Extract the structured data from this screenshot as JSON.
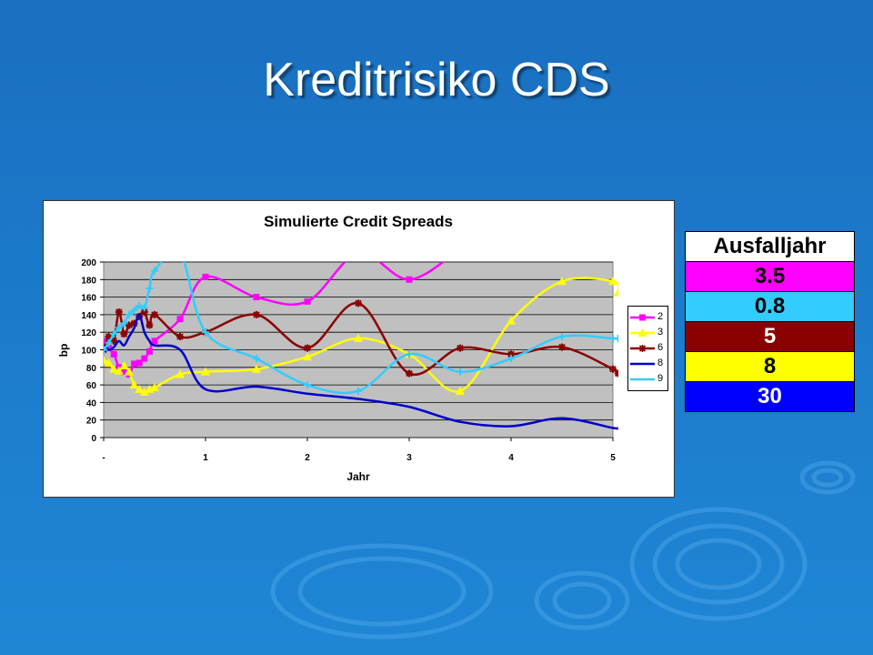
{
  "slide": {
    "title": "Kreditrisiko CDS"
  },
  "chart_data": {
    "type": "line",
    "title": "Simulierte Credit Spreads",
    "xlabel": "Jahr",
    "ylabel": "bp",
    "xlim": [
      0,
      5
    ],
    "ylim": [
      0,
      200
    ],
    "y_ticks": [
      0,
      20,
      40,
      60,
      80,
      100,
      120,
      140,
      160,
      180,
      200
    ],
    "x_ticks": [
      {
        "v": 0,
        "label": "-"
      },
      {
        "v": 1,
        "label": "1"
      },
      {
        "v": 2,
        "label": "2"
      },
      {
        "v": 3,
        "label": "3"
      },
      {
        "v": 4,
        "label": "4"
      },
      {
        "v": 5,
        "label": "5"
      }
    ],
    "grid": true,
    "legend_position": "right",
    "series": [
      {
        "name": "2",
        "color": "#ff00ff",
        "marker": "square",
        "x": [
          0,
          0.05,
          0.1,
          0.15,
          0.2,
          0.25,
          0.3,
          0.35,
          0.4,
          0.45,
          0.5,
          0.75,
          1.0,
          1.5,
          2.0,
          2.5,
          3.0,
          3.5
        ],
        "y": [
          110,
          102,
          95,
          80,
          75,
          72,
          84,
          85,
          90,
          98,
          110,
          135,
          183,
          160,
          155,
          210,
          180,
          215
        ]
      },
      {
        "name": "3",
        "color": "#ffff00",
        "marker": "triangle",
        "x": [
          0,
          0.05,
          0.1,
          0.15,
          0.2,
          0.25,
          0.3,
          0.35,
          0.4,
          0.45,
          0.5,
          0.75,
          1.0,
          1.5,
          2.0,
          2.5,
          3.0,
          3.5,
          4.0,
          4.5,
          5.0,
          5.05
        ],
        "y": [
          88,
          85,
          78,
          76,
          82,
          75,
          60,
          55,
          52,
          55,
          57,
          72,
          75,
          78,
          92,
          113,
          95,
          53,
          133,
          178,
          178,
          165
        ]
      },
      {
        "name": "6",
        "color": "#8b0000",
        "marker": "asterisk",
        "x": [
          0,
          0.05,
          0.1,
          0.15,
          0.2,
          0.25,
          0.3,
          0.35,
          0.4,
          0.45,
          0.5,
          0.75,
          1.0,
          1.5,
          2.0,
          2.5,
          3.0,
          3.5,
          4.0,
          4.5,
          5.0,
          5.05
        ],
        "y": [
          100,
          115,
          110,
          143,
          118,
          128,
          130,
          138,
          143,
          128,
          140,
          115,
          120,
          140,
          102,
          153,
          73,
          102,
          95,
          103,
          78,
          73
        ]
      },
      {
        "name": "8",
        "color": "#0000cc",
        "marker": "none",
        "x": [
          0,
          0.05,
          0.1,
          0.15,
          0.2,
          0.25,
          0.3,
          0.35,
          0.4,
          0.45,
          0.5,
          0.75,
          1.0,
          1.5,
          2.0,
          2.5,
          3.0,
          3.5,
          4.0,
          4.5,
          5.0,
          5.05
        ],
        "y": [
          105,
          100,
          103,
          110,
          105,
          115,
          125,
          140,
          120,
          110,
          105,
          100,
          55,
          58,
          50,
          44,
          35,
          18,
          13,
          22,
          11,
          11
        ]
      },
      {
        "name": "9",
        "color": "#33ccff",
        "marker": "plus",
        "x": [
          0,
          0.05,
          0.1,
          0.15,
          0.2,
          0.25,
          0.3,
          0.35,
          0.4,
          0.45,
          0.5,
          0.75,
          1.0,
          1.5,
          2.0,
          2.5,
          3.0,
          3.5,
          4.0,
          4.5,
          5.0,
          5.05
        ],
        "y": [
          100,
          108,
          118,
          125,
          130,
          140,
          145,
          150,
          148,
          170,
          190,
          210,
          120,
          90,
          60,
          53,
          95,
          75,
          90,
          115,
          113,
          113
        ]
      }
    ]
  },
  "side_table": {
    "header": "Ausfalljahr",
    "rows": [
      {
        "value": "3.5",
        "color": "#ff00ff",
        "text_color": "#000000"
      },
      {
        "value": "0.8",
        "color": "#33ccff",
        "text_color": "#000000"
      },
      {
        "value": "5",
        "color": "#8b0000",
        "text_color": "#ffffff"
      },
      {
        "value": "8",
        "color": "#ffff00",
        "text_color": "#000000"
      },
      {
        "value": "30",
        "color": "#0000ff",
        "text_color": "#ffffff"
      }
    ]
  }
}
